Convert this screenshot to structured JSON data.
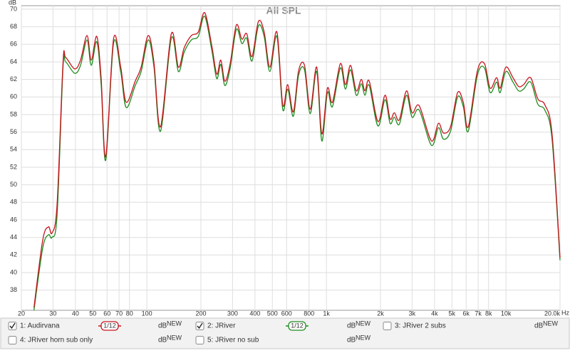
{
  "chart_data": {
    "type": "line",
    "title": "All SPL",
    "y_label": "dB",
    "x_label": "Hz",
    "xscale": "log",
    "grid": true,
    "xlim": [
      20,
      20000
    ],
    "ylim": [
      35.7,
      70.4
    ],
    "xticks": [
      20,
      30,
      40,
      50,
      60,
      70,
      80,
      100,
      200,
      300,
      400,
      500,
      600,
      800,
      {
        "value": 1000,
        "label": "1k"
      },
      {
        "value": 2000,
        "label": "2k"
      },
      {
        "value": 3000,
        "label": "3k"
      },
      {
        "value": 4000,
        "label": "4k"
      },
      {
        "value": 5000,
        "label": "5k"
      },
      {
        "value": 6000,
        "label": "6k"
      },
      {
        "value": 7000,
        "label": "7k"
      },
      {
        "value": 8000,
        "label": "8k"
      },
      {
        "value": 10000,
        "label": "10k"
      },
      {
        "value": 20000,
        "label": "20.0k"
      }
    ],
    "yticks": [
      38,
      40,
      42,
      44,
      46,
      48,
      50,
      52,
      54,
      56,
      58,
      60,
      62,
      64,
      66,
      68,
      70
    ],
    "x": [
      23.5,
      26.3,
      28.3,
      29.6,
      31.6,
      34.1,
      35.3,
      39.6,
      42.7,
      46.4,
      49,
      52.6,
      55.6,
      59,
      65.2,
      71.5,
      76.7,
      86.1,
      92.9,
      101.7,
      109.4,
      119.1,
      136.8,
      149.8,
      161.3,
      177,
      193.3,
      209.8,
      230,
      245,
      258,
      272,
      291,
      315,
      338,
      360,
      385,
      418,
      450,
      484,
      530,
      571,
      609,
      654,
      700,
      755,
      812,
      883,
      942,
      1013,
      1080,
      1196,
      1276,
      1362,
      1466,
      1564,
      1638,
      1732,
      1936,
      2121,
      2262,
      2390,
      2548,
      2792,
      3000,
      3287,
      3842,
      4205,
      4484,
      4911,
      5378,
      5784,
      6164,
      6934,
      7590,
      8163,
      8868,
      9283,
      9986,
      10938,
      11755,
      12532,
      13725,
      15032,
      16471,
      18052,
      20000
    ],
    "legend_unit": "dB",
    "legend_badge": "NEW",
    "series": [
      {
        "name": "1: Audirvana",
        "color": "#c8141e",
        "checked": true,
        "smoothing": "1/12",
        "values": [
          36,
          43.7,
          45.2,
          44.5,
          47.7,
          63.8,
          64.5,
          63.2,
          64.2,
          67.0,
          64.2,
          66.9,
          62.2,
          53.2,
          66.6,
          63.4,
          59.4,
          61.8,
          63.4,
          67.0,
          64.0,
          56.6,
          67.2,
          63.4,
          65.6,
          67.0,
          67.4,
          69.6,
          65.8,
          62.6,
          64.2,
          61.8,
          63.8,
          68.2,
          66.6,
          67.2,
          64.6,
          68.6,
          67.4,
          63.4,
          67.4,
          59.1,
          61.4,
          58.3,
          63.0,
          63.6,
          58.6,
          63.4,
          55.8,
          61.0,
          59.4,
          63.8,
          61.4,
          63.6,
          60.7,
          62.0,
          60.7,
          61.8,
          57.2,
          60.2,
          57.5,
          58.2,
          57.4,
          60.7,
          58.2,
          59.0,
          55.0,
          57.0,
          55.9,
          56.6,
          60.5,
          59.4,
          56.6,
          63.0,
          63.8,
          61.0,
          62.2,
          61.0,
          63.4,
          62.2,
          61.2,
          61.4,
          62.2,
          59.8,
          59.1,
          55.8,
          41.7
        ]
      },
      {
        "name": "2: JRiver",
        "color": "#1e8c1e",
        "checked": true,
        "smoothing": "1/12",
        "values": [
          35.7,
          42.8,
          44.3,
          44.0,
          46.5,
          63.3,
          64.0,
          62.7,
          63.6,
          66.5,
          63.6,
          66.3,
          61.5,
          52.8,
          66.1,
          62.9,
          58.8,
          61.3,
          62.9,
          66.5,
          63.5,
          56.1,
          66.7,
          62.9,
          65.1,
          66.5,
          66.9,
          69.2,
          65.3,
          62.1,
          63.7,
          61.3,
          63.3,
          67.7,
          66.1,
          66.7,
          64.1,
          68.1,
          66.9,
          62.9,
          66.9,
          58.6,
          60.9,
          57.8,
          62.5,
          63.1,
          58.1,
          62.9,
          55.0,
          60.5,
          58.9,
          63.3,
          60.9,
          63.1,
          60.2,
          61.5,
          60.2,
          61.3,
          56.7,
          59.7,
          57.0,
          57.7,
          56.9,
          60.2,
          57.7,
          58.5,
          54.5,
          56.5,
          55.2,
          56.1,
          60.0,
          58.9,
          56.1,
          62.5,
          63.3,
          60.5,
          61.7,
          60.5,
          62.9,
          61.7,
          60.7,
          60.9,
          61.7,
          59.2,
          58.5,
          55.2,
          41.4
        ]
      }
    ],
    "other_traces": [
      {
        "name": "3: JRiver 2 subs",
        "color": "#4040c0",
        "checked": false
      },
      {
        "name": "4: JRiver horn sub only",
        "color": "#c020c0",
        "checked": false
      },
      {
        "name": "5: JRiver no sub",
        "color": "#208c8c",
        "checked": false
      }
    ]
  }
}
